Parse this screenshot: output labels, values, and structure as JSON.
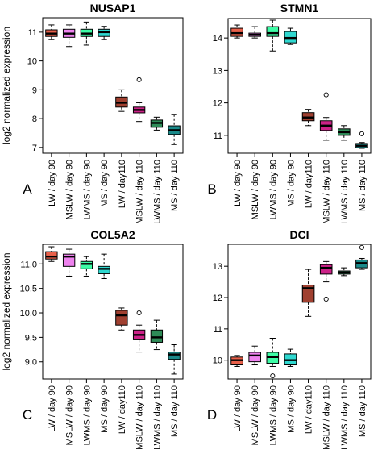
{
  "y_axis_label": "log2 normalized expression",
  "categories": [
    "LW / day 90",
    "MSLW / day 90",
    "LWMS / day 90",
    "MS / day 90",
    "LW / day110",
    "MSLW / day 110",
    "LWMS / day 110",
    "MS / day 110"
  ],
  "colors": [
    "#e8604a",
    "#ee82ee",
    "#3dfca6",
    "#2fd8d0",
    "#a04030",
    "#cc2288",
    "#2e8b57",
    "#1a8a8a"
  ],
  "chart_data": [
    {
      "type": "box",
      "title": "NUSAP1",
      "panel_label": "A",
      "ylabel": "log2 normalized expression",
      "ylim": [
        6.8,
        11.5
      ],
      "yticks": [
        7,
        8,
        9,
        10,
        11
      ],
      "boxes": [
        {
          "category": "LW / day 90",
          "min": 10.75,
          "q1": 10.85,
          "median": 10.95,
          "q3": 11.08,
          "max": 11.25,
          "outliers": []
        },
        {
          "category": "MSLW / day 90",
          "min": 10.5,
          "q1": 10.82,
          "median": 10.95,
          "q3": 11.1,
          "max": 11.25,
          "outliers": []
        },
        {
          "category": "LWMS / day 90",
          "min": 10.55,
          "q1": 10.85,
          "median": 10.95,
          "q3": 11.1,
          "max": 11.35,
          "outliers": []
        },
        {
          "category": "MS / day 90",
          "min": 10.75,
          "q1": 10.85,
          "median": 11.0,
          "q3": 11.1,
          "max": 11.2,
          "outliers": []
        },
        {
          "category": "LW / day110",
          "min": 8.25,
          "q1": 8.4,
          "median": 8.55,
          "q3": 8.75,
          "max": 9.0,
          "outliers": []
        },
        {
          "category": "MSLW / day 110",
          "min": 7.9,
          "q1": 8.2,
          "median": 8.3,
          "q3": 8.4,
          "max": 8.55,
          "outliers": [
            9.35
          ]
        },
        {
          "category": "LWMS / day 110",
          "min": 7.6,
          "q1": 7.7,
          "median": 7.85,
          "q3": 7.95,
          "max": 8.05,
          "outliers": []
        },
        {
          "category": "MS / day 110",
          "min": 7.1,
          "q1": 7.45,
          "median": 7.6,
          "q3": 7.75,
          "max": 8.15,
          "outliers": []
        }
      ]
    },
    {
      "type": "box",
      "title": "STMN1",
      "panel_label": "B",
      "ylabel": "",
      "ylim": [
        10.45,
        14.6
      ],
      "yticks": [
        11,
        12,
        13,
        14
      ],
      "boxes": [
        {
          "category": "LW / day 90",
          "min": 14.0,
          "q1": 14.05,
          "median": 14.15,
          "q3": 14.3,
          "max": 14.4,
          "outliers": []
        },
        {
          "category": "MSLW / day 90",
          "min": 14.0,
          "q1": 14.05,
          "median": 14.1,
          "q3": 14.15,
          "max": 14.35,
          "outliers": []
        },
        {
          "category": "LWMS / day 90",
          "min": 13.6,
          "q1": 14.05,
          "median": 14.15,
          "q3": 14.35,
          "max": 14.55,
          "outliers": []
        },
        {
          "category": "MS / day 90",
          "min": 13.8,
          "q1": 13.85,
          "median": 14.0,
          "q3": 14.2,
          "max": 14.3,
          "outliers": []
        },
        {
          "category": "LW / day110",
          "min": 11.3,
          "q1": 11.45,
          "median": 11.55,
          "q3": 11.7,
          "max": 11.8,
          "outliers": []
        },
        {
          "category": "MSLW / day 110",
          "min": 10.85,
          "q1": 11.15,
          "median": 11.3,
          "q3": 11.45,
          "max": 11.55,
          "outliers": [
            12.25
          ]
        },
        {
          "category": "LWMS / day 110",
          "min": 10.85,
          "q1": 11.0,
          "median": 11.1,
          "q3": 11.2,
          "max": 11.3,
          "outliers": []
        },
        {
          "category": "MS / day 110",
          "min": 10.6,
          "q1": 10.62,
          "median": 10.68,
          "q3": 10.75,
          "max": 10.78,
          "outliers": [
            11.05
          ]
        }
      ]
    },
    {
      "type": "box",
      "title": "COL5A2",
      "panel_label": "C",
      "ylabel": "log2 normalized expression",
      "ylim": [
        8.65,
        11.4
      ],
      "yticks": [
        9.0,
        9.5,
        10.0,
        10.5,
        11.0
      ],
      "boxes": [
        {
          "category": "LW / day 90",
          "min": 11.05,
          "q1": 11.1,
          "median": 11.15,
          "q3": 11.25,
          "max": 11.35,
          "outliers": []
        },
        {
          "category": "MSLW / day 90",
          "min": 10.75,
          "q1": 10.95,
          "median": 11.15,
          "q3": 11.2,
          "max": 11.3,
          "outliers": []
        },
        {
          "category": "LWMS / day 90",
          "min": 10.75,
          "q1": 10.9,
          "median": 11.0,
          "q3": 11.05,
          "max": 11.15,
          "outliers": []
        },
        {
          "category": "MS / day 90",
          "min": 10.7,
          "q1": 10.8,
          "median": 10.9,
          "q3": 10.95,
          "max": 11.2,
          "outliers": []
        },
        {
          "category": "LW / day110",
          "min": 9.65,
          "q1": 9.75,
          "median": 9.95,
          "q3": 10.05,
          "max": 10.1,
          "outliers": []
        },
        {
          "category": "MSLW / day 110",
          "min": 9.2,
          "q1": 9.45,
          "median": 9.55,
          "q3": 9.65,
          "max": 9.75,
          "outliers": [
            10.0
          ]
        },
        {
          "category": "LWMS / day 110",
          "min": 9.25,
          "q1": 9.4,
          "median": 9.5,
          "q3": 9.65,
          "max": 9.85,
          "outliers": []
        },
        {
          "category": "MS / day 110",
          "min": 8.75,
          "q1": 9.05,
          "median": 9.15,
          "q3": 9.2,
          "max": 9.35,
          "outliers": []
        }
      ]
    },
    {
      "type": "box",
      "title": "DCI",
      "panel_label": "D",
      "ylabel": "",
      "ylim": [
        9.4,
        13.7
      ],
      "yticks": [
        10,
        11,
        12,
        13
      ],
      "boxes": [
        {
          "category": "LW / day 90",
          "min": 9.8,
          "q1": 9.85,
          "median": 10.0,
          "q3": 10.1,
          "max": 10.15,
          "outliers": []
        },
        {
          "category": "MSLW / day 90",
          "min": 9.85,
          "q1": 9.95,
          "median": 10.15,
          "q3": 10.25,
          "max": 10.45,
          "outliers": []
        },
        {
          "category": "LWMS / day 90",
          "min": 9.8,
          "q1": 9.9,
          "median": 10.1,
          "q3": 10.25,
          "max": 10.7,
          "outliers": [
            9.5
          ]
        },
        {
          "category": "MS / day 90",
          "min": 9.8,
          "q1": 9.85,
          "median": 10.0,
          "q3": 10.2,
          "max": 10.35,
          "outliers": []
        },
        {
          "category": "LW / day110",
          "min": 11.4,
          "q1": 11.85,
          "median": 12.3,
          "q3": 12.4,
          "max": 12.9,
          "outliers": []
        },
        {
          "category": "MSLW / day 110",
          "min": 12.5,
          "q1": 12.75,
          "median": 12.95,
          "q3": 13.05,
          "max": 13.15,
          "outliers": [
            11.95
          ]
        },
        {
          "category": "LWMS / day 110",
          "min": 12.7,
          "q1": 12.75,
          "median": 12.8,
          "q3": 12.85,
          "max": 12.95,
          "outliers": []
        },
        {
          "category": "MS / day 110",
          "min": 12.9,
          "q1": 12.95,
          "median": 13.1,
          "q3": 13.2,
          "max": 13.25,
          "outliers": [
            13.6
          ]
        }
      ]
    }
  ]
}
